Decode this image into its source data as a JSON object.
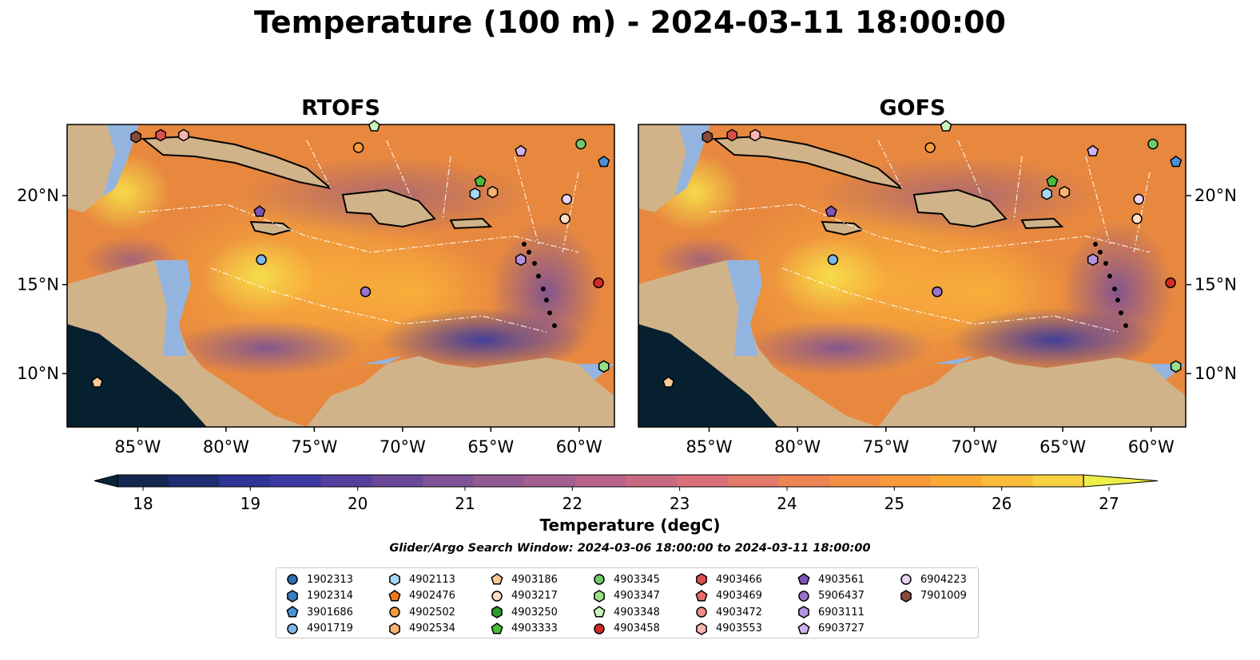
{
  "title": "Temperature (100 m) - 2024-03-11 18:00:00",
  "panels": [
    {
      "title": "RTOFS"
    },
    {
      "title": "GOFS"
    }
  ],
  "map": {
    "lon_range": [
      -89,
      -58
    ],
    "lat_range": [
      7,
      24
    ],
    "lon_ticks": [
      "85°W",
      "80°W",
      "75°W",
      "70°W",
      "65°W",
      "60°W"
    ],
    "lat_ticks": [
      "20°N",
      "15°N",
      "10°N"
    ],
    "land_color": "#d1b38a",
    "shelf_color": "#94b4e0",
    "deep_color": "#06202f"
  },
  "colorbar": {
    "label": "Temperature (degC)",
    "min": 17.5,
    "max": 27.5,
    "ticks": [
      "18",
      "19",
      "20",
      "21",
      "22",
      "23",
      "24",
      "25",
      "26",
      "27"
    ],
    "colors": [
      "#0a2436",
      "#12264f",
      "#1f2d72",
      "#2f3395",
      "#3e3aa3",
      "#553f9f",
      "#6a4899",
      "#7f5196",
      "#935991",
      "#a55f8e",
      "#b8648a",
      "#c86a82",
      "#d8707a",
      "#e37a6a",
      "#ec8454",
      "#f38f45",
      "#f89a3a",
      "#fbaa35",
      "#fbbd3a",
      "#f6d140",
      "#ecef48"
    ]
  },
  "search_window": "Glider/Argo Search Window: 2024-03-06 18:00:00 to 2024-03-11 18:00:00",
  "floats": [
    {
      "id": "1902313",
      "color": "#2a6fb8",
      "marker": "circle"
    },
    {
      "id": "1902314",
      "color": "#3b7ec2",
      "marker": "hexagon"
    },
    {
      "id": "3901686",
      "color": "#4a92d6",
      "marker": "pentagon",
      "lon": -58.6,
      "lat": 21.9
    },
    {
      "id": "4901719",
      "color": "#7fb6ea",
      "marker": "circle",
      "lon": -78.0,
      "lat": 16.4
    },
    {
      "id": "4902113",
      "color": "#a7d8f7",
      "marker": "hexagon",
      "lon": -65.9,
      "lat": 20.1
    },
    {
      "id": "4902476",
      "color": "#f07818",
      "marker": "pentagon"
    },
    {
      "id": "4902502",
      "color": "#f49a3e",
      "marker": "circle",
      "lon": -72.5,
      "lat": 22.7
    },
    {
      "id": "4902534",
      "color": "#f7b373",
      "marker": "hexagon",
      "lon": -64.9,
      "lat": 20.2
    },
    {
      "id": "4903186",
      "color": "#fbc994",
      "marker": "pentagon",
      "lon": -87.3,
      "lat": 9.5
    },
    {
      "id": "4903217",
      "color": "#fde0c4",
      "marker": "circle",
      "lon": -60.8,
      "lat": 18.7
    },
    {
      "id": "4903250",
      "color": "#2a9a2a",
      "marker": "hexagon"
    },
    {
      "id": "4903333",
      "color": "#4dbb3a",
      "marker": "pentagon",
      "lon": -65.6,
      "lat": 20.8
    },
    {
      "id": "4903345",
      "color": "#6fcb68",
      "marker": "circle",
      "lon": -59.9,
      "lat": 22.9
    },
    {
      "id": "4903347",
      "color": "#97e088",
      "marker": "hexagon",
      "lon": -58.6,
      "lat": 10.4
    },
    {
      "id": "4903348",
      "color": "#c8f7bd",
      "marker": "pentagon",
      "lon": -71.6,
      "lat": 23.9
    },
    {
      "id": "4903458",
      "color": "#d42a25",
      "marker": "circle",
      "lon": -58.9,
      "lat": 15.1
    },
    {
      "id": "4903466",
      "color": "#d9504a",
      "marker": "hexagon",
      "lon": -83.7,
      "lat": 23.4
    },
    {
      "id": "4903469",
      "color": "#e86c6c",
      "marker": "pentagon"
    },
    {
      "id": "4903472",
      "color": "#f28f8c",
      "marker": "circle"
    },
    {
      "id": "4903553",
      "color": "#f8b6b3",
      "marker": "hexagon",
      "lon": -82.4,
      "lat": 23.4
    },
    {
      "id": "4903561",
      "color": "#7d54b8",
      "marker": "pentagon",
      "lon": -78.1,
      "lat": 19.1
    },
    {
      "id": "5906437",
      "color": "#9a74c9",
      "marker": "circle",
      "lon": -72.1,
      "lat": 14.6
    },
    {
      "id": "6903111",
      "color": "#b393dc",
      "marker": "hexagon",
      "lon": -63.3,
      "lat": 16.4
    },
    {
      "id": "6903727",
      "color": "#cfb2ec",
      "marker": "pentagon",
      "lon": -63.3,
      "lat": 22.5
    },
    {
      "id": "6904223",
      "color": "#ecd3f8",
      "marker": "circle",
      "lon": -60.7,
      "lat": 19.8
    },
    {
      "id": "7901009",
      "color": "#8a4a3a",
      "marker": "hexagon",
      "lon": -85.1,
      "lat": 23.3
    }
  ]
}
